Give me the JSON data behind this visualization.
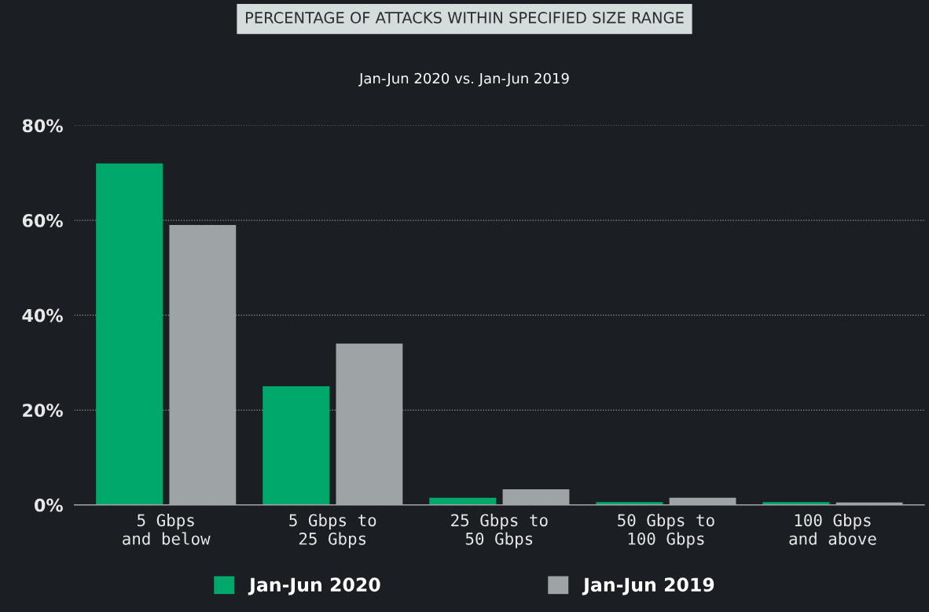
{
  "chart_data": {
    "type": "bar",
    "title": "PERCENTAGE OF ATTACKS WITHIN SPECIFIED SIZE RANGE",
    "subtitle": "Jan-Jun 2020 vs. Jan-Jun 2019",
    "categories": [
      "5 Gbps\nand below",
      "5 Gbps to\n25 Gbps",
      "25 Gbps to\n50 Gbps",
      "50 Gbps to\n100 Gbps",
      "100 Gbps\nand above"
    ],
    "series": [
      {
        "name": "Jan-Jun 2020",
        "color": "#00a86b",
        "values": [
          72,
          25,
          1.5,
          0.6,
          0.6
        ]
      },
      {
        "name": "Jan-Jun 2019",
        "color": "#9ea3a6",
        "values": [
          59,
          34,
          3.3,
          1.5,
          0.5
        ]
      }
    ],
    "ylim": [
      0,
      80
    ],
    "yticks": [
      {
        "value": 0,
        "label": "0%"
      },
      {
        "value": 20,
        "label": "20%"
      },
      {
        "value": 40,
        "label": "40%"
      },
      {
        "value": 60,
        "label": "60%"
      },
      {
        "value": 80,
        "label": "80%"
      }
    ],
    "grid": "y",
    "legend": "bottom"
  }
}
